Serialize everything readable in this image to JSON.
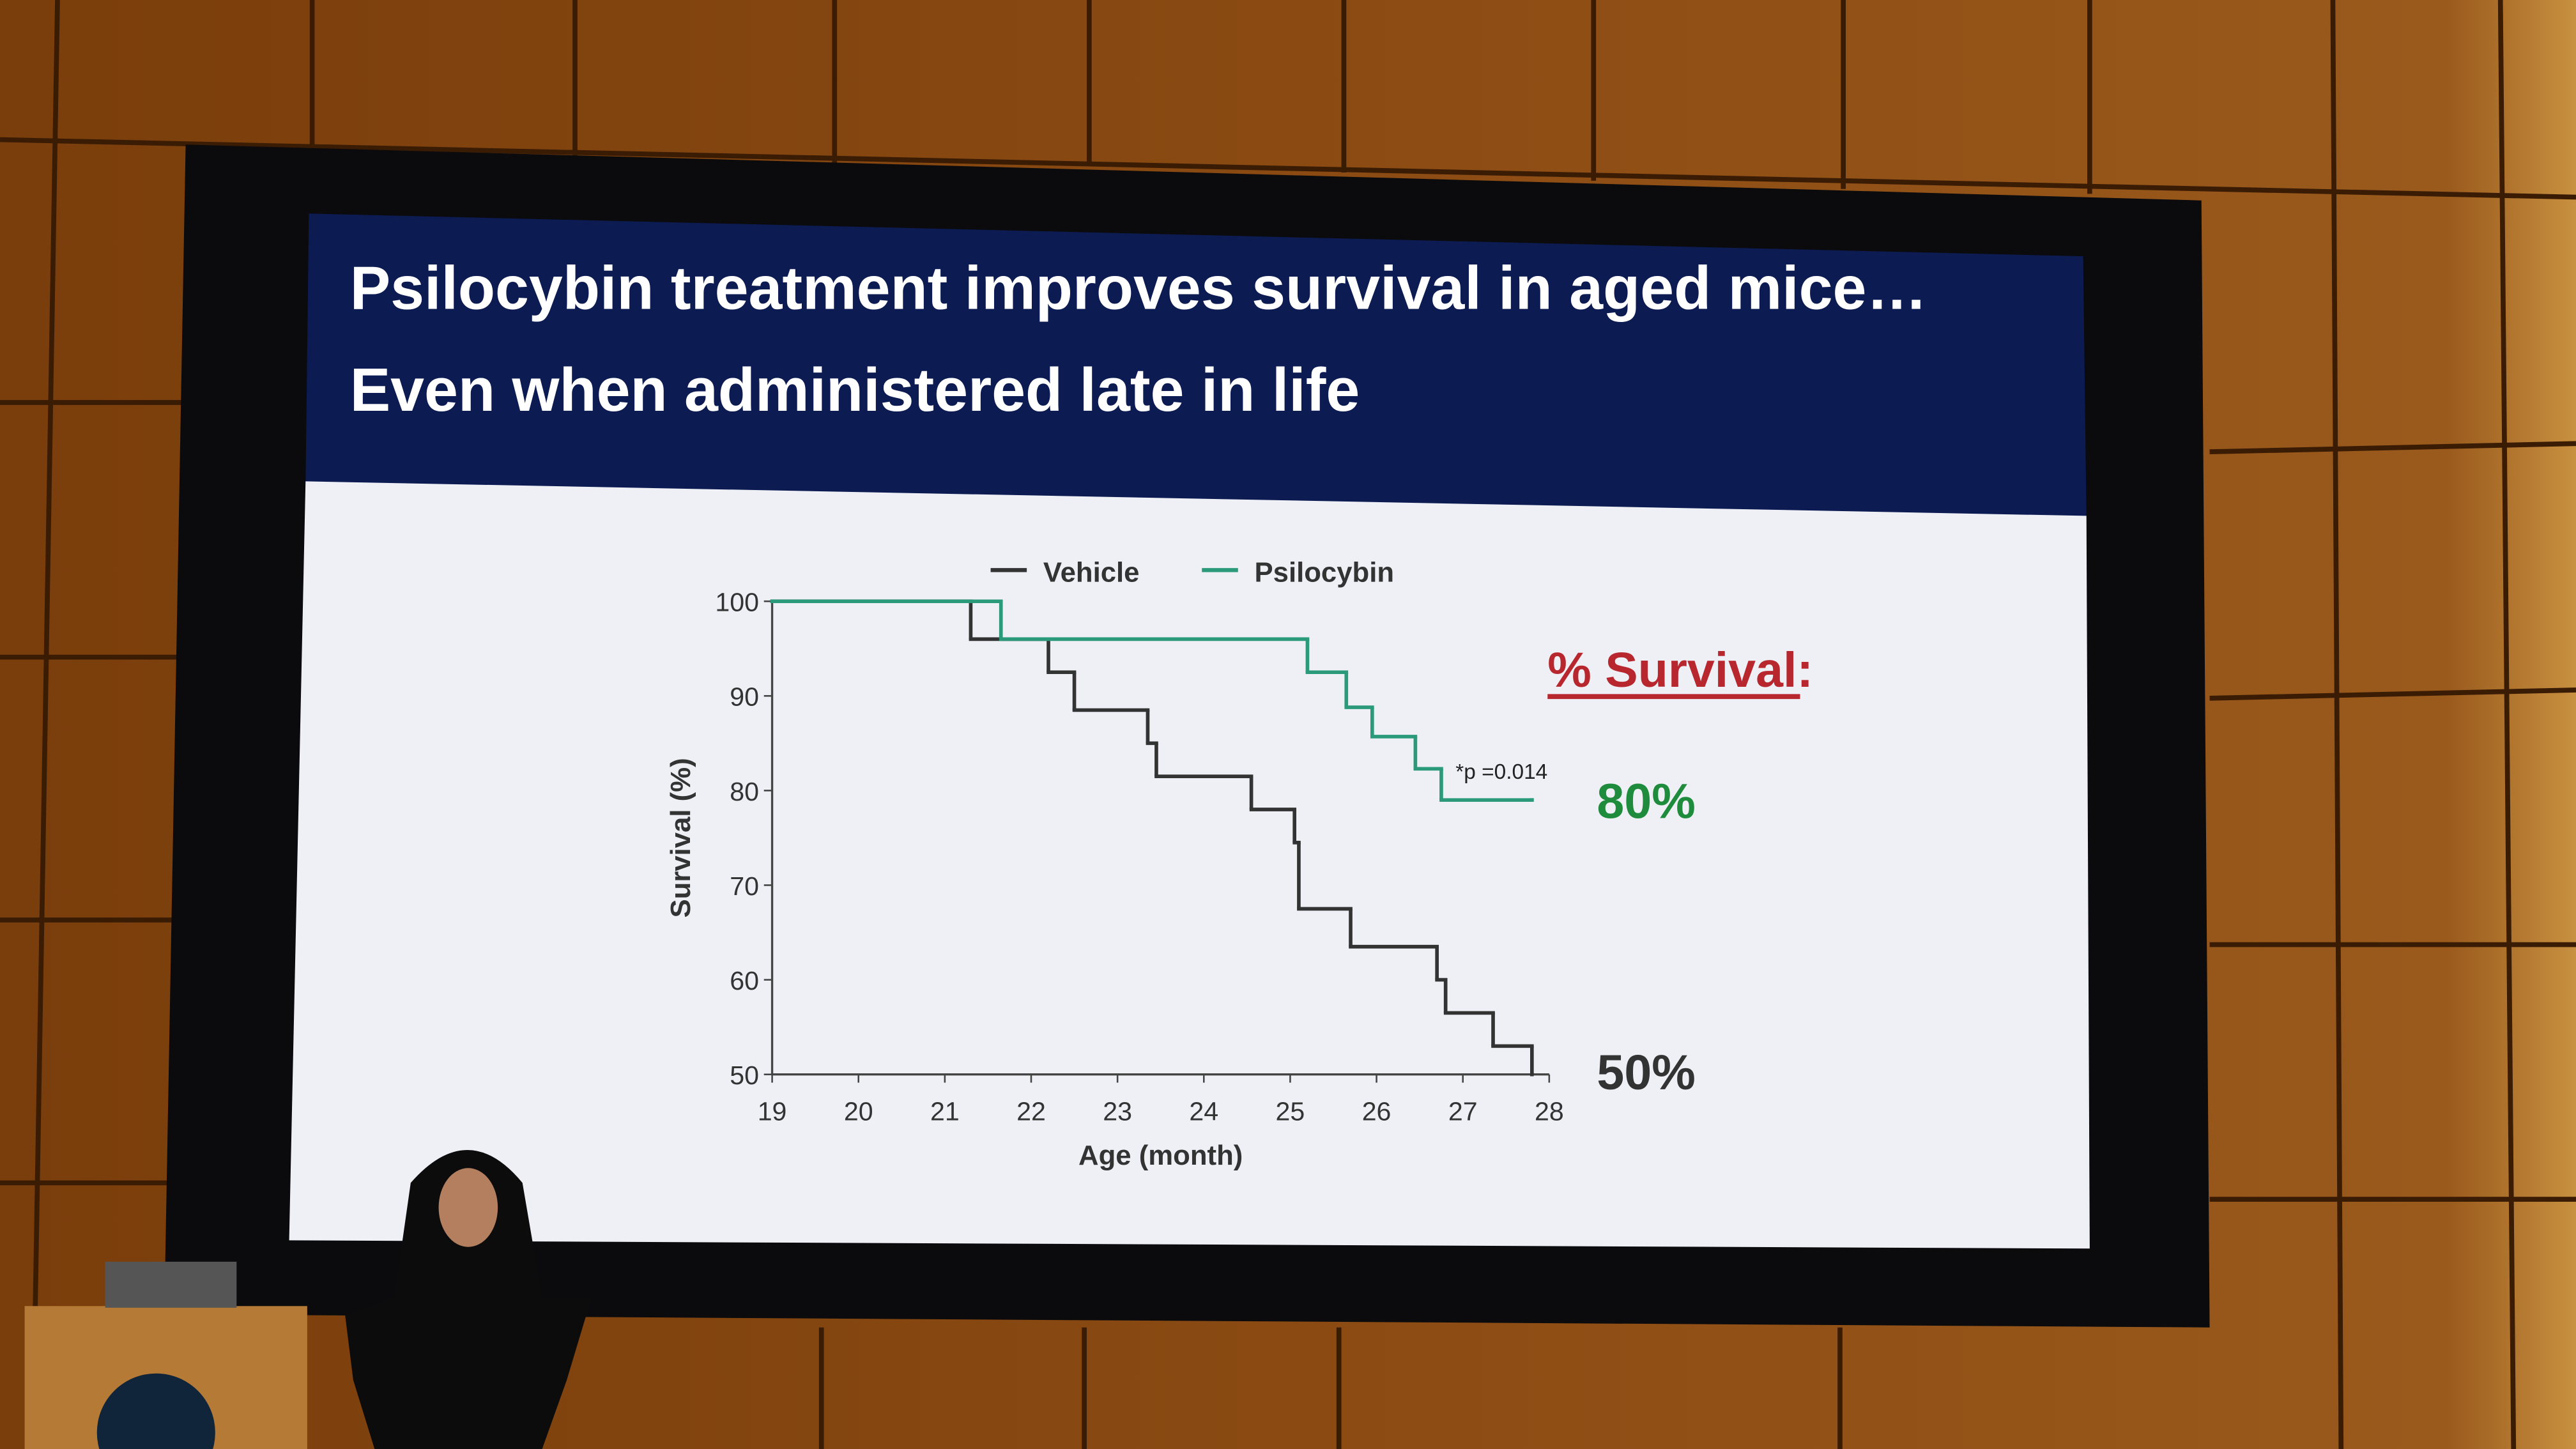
{
  "chart_data": {
    "type": "line",
    "step": "post",
    "title": "Psilocybin treatment improves survival in aged mice…",
    "subtitle": "Even when administered late in life",
    "x_label": "Age (month)",
    "y_label": "Survival (%)",
    "xlim": [
      19,
      28
    ],
    "xticks": [
      19,
      20,
      21,
      22,
      23,
      24,
      25,
      26,
      27,
      28
    ],
    "ylim": [
      50,
      100
    ],
    "yticks": [
      50,
      60,
      70,
      80,
      90,
      100
    ],
    "grid": false,
    "legend": "top",
    "series": [
      {
        "name": "Vehicle",
        "color": "#333333",
        "x": [
          19,
          21.3,
          22.2,
          22.5,
          23.35,
          23.45,
          24.55,
          25.05,
          25.1,
          25.7,
          26.7,
          26.8,
          27.35,
          27.8
        ],
        "values": [
          100,
          96,
          92.5,
          88.5,
          85,
          81.5,
          78,
          74.5,
          67.5,
          63.5,
          60,
          56.5,
          53,
          50
        ]
      },
      {
        "name": "Psilocybin",
        "color": "#2a9a7a",
        "x": [
          19,
          21.65,
          25.2,
          25.65,
          25.95,
          26.45,
          26.75,
          27.8
        ],
        "values": [
          100,
          96,
          92.5,
          88.8,
          85.7,
          82.3,
          79,
          79
        ]
      }
    ],
    "annotations": [
      {
        "text": "*p =0.014",
        "color": "#222222"
      },
      {
        "text": "% Survival:",
        "color": "#b8262e"
      },
      {
        "text": "80%",
        "color": "#1e8c3c"
      },
      {
        "text": "50%",
        "color": "#333333"
      }
    ]
  }
}
